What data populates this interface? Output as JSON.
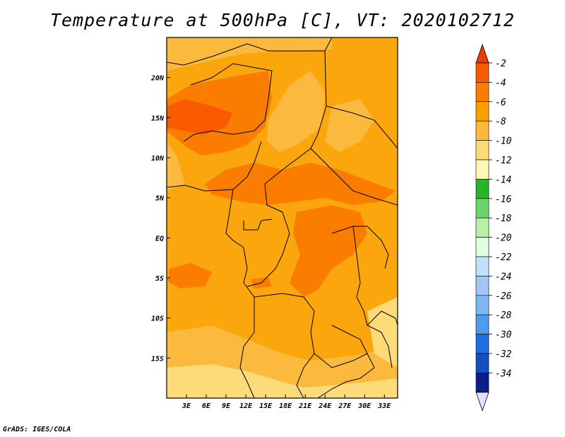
{
  "title": "Temperature at 500hPa [C], VT: 2020102712",
  "credit": "GrADS: IGES/COLA",
  "map": {
    "lon_range": [
      0,
      35
    ],
    "lat_range": [
      -20,
      25
    ],
    "lon_ticks": [
      {
        "lon": 3,
        "label": "3E"
      },
      {
        "lon": 6,
        "label": "6E"
      },
      {
        "lon": 9,
        "label": "9E"
      },
      {
        "lon": 12,
        "label": "12E"
      },
      {
        "lon": 15,
        "label": "15E"
      },
      {
        "lon": 18,
        "label": "18E"
      },
      {
        "lon": 21,
        "label": "21E"
      },
      {
        "lon": 24,
        "label": "24E"
      },
      {
        "lon": 27,
        "label": "27E"
      },
      {
        "lon": 30,
        "label": "30E"
      },
      {
        "lon": 33,
        "label": "33E"
      }
    ],
    "lat_ticks": [
      {
        "lat": 20,
        "label": "20N"
      },
      {
        "lat": 15,
        "label": "15N"
      },
      {
        "lat": 10,
        "label": "10N"
      },
      {
        "lat": 5,
        "label": "5N"
      },
      {
        "lat": 0,
        "label": "EQ"
      },
      {
        "lat": -5,
        "label": "5S"
      },
      {
        "lat": -10,
        "label": "10S"
      },
      {
        "lat": -15,
        "label": "15S"
      }
    ],
    "background_color": "#fba60c"
  },
  "colorbar": {
    "labels": [
      "-2",
      "-4",
      "-6",
      "-8",
      "-10",
      "-12",
      "-14",
      "-16",
      "-18",
      "-20",
      "-22",
      "-24",
      "-26",
      "-28",
      "-30",
      "-32",
      "-34"
    ],
    "colors": [
      "#fa5a00",
      "#fa7d00",
      "#faa000",
      "#fbba3e",
      "#fcdb78",
      "#fff7b5",
      "#28b428",
      "#6ad56a",
      "#b8f0a8",
      "#e1ffe1",
      "#bfe2ff",
      "#a1c8f5",
      "#7db8f3",
      "#4d9cf0",
      "#1d6fe0",
      "#1350c0",
      "#0c1f87"
    ],
    "top_arrow_color": "#f03c00",
    "bottom_arrow_color": "#e1e1ff"
  }
}
